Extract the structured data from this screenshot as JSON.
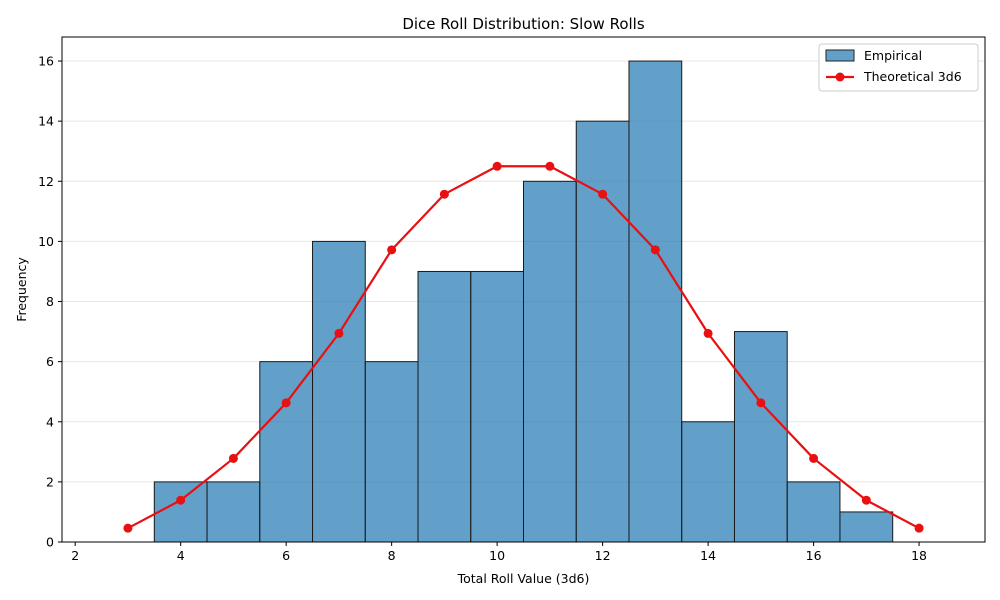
{
  "chart_data": {
    "type": "bar",
    "title": "Dice Roll Distribution: Slow Rolls",
    "xlabel": "Total Roll Value (3d6)",
    "ylabel": "Frequency",
    "xlim": [
      1.75,
      19.25
    ],
    "ylim": [
      0,
      16.8
    ],
    "xticks": [
      2,
      4,
      6,
      8,
      10,
      12,
      14,
      16,
      18
    ],
    "yticks": [
      0,
      2,
      4,
      6,
      8,
      10,
      12,
      14,
      16
    ],
    "grid": "horizontal",
    "legend_position": "top-right",
    "series": [
      {
        "name": "Empirical",
        "type": "bar",
        "color": "#1f77b4",
        "x": [
          3,
          4,
          5,
          6,
          7,
          8,
          9,
          10,
          11,
          12,
          13,
          14,
          15,
          16,
          17,
          18
        ],
        "values": [
          0,
          2,
          2,
          6,
          10,
          6,
          9,
          9,
          12,
          14,
          16,
          4,
          7,
          2,
          1,
          0
        ]
      },
      {
        "name": "Theoretical 3d6",
        "type": "line",
        "color": "#e81010",
        "x": [
          3,
          4,
          5,
          6,
          7,
          8,
          9,
          10,
          11,
          12,
          13,
          14,
          15,
          16,
          17,
          18
        ],
        "values": [
          0.46,
          1.39,
          2.78,
          4.63,
          6.94,
          9.72,
          11.57,
          12.5,
          12.5,
          11.57,
          9.72,
          6.94,
          4.63,
          2.78,
          1.39,
          0.46
        ]
      }
    ]
  }
}
